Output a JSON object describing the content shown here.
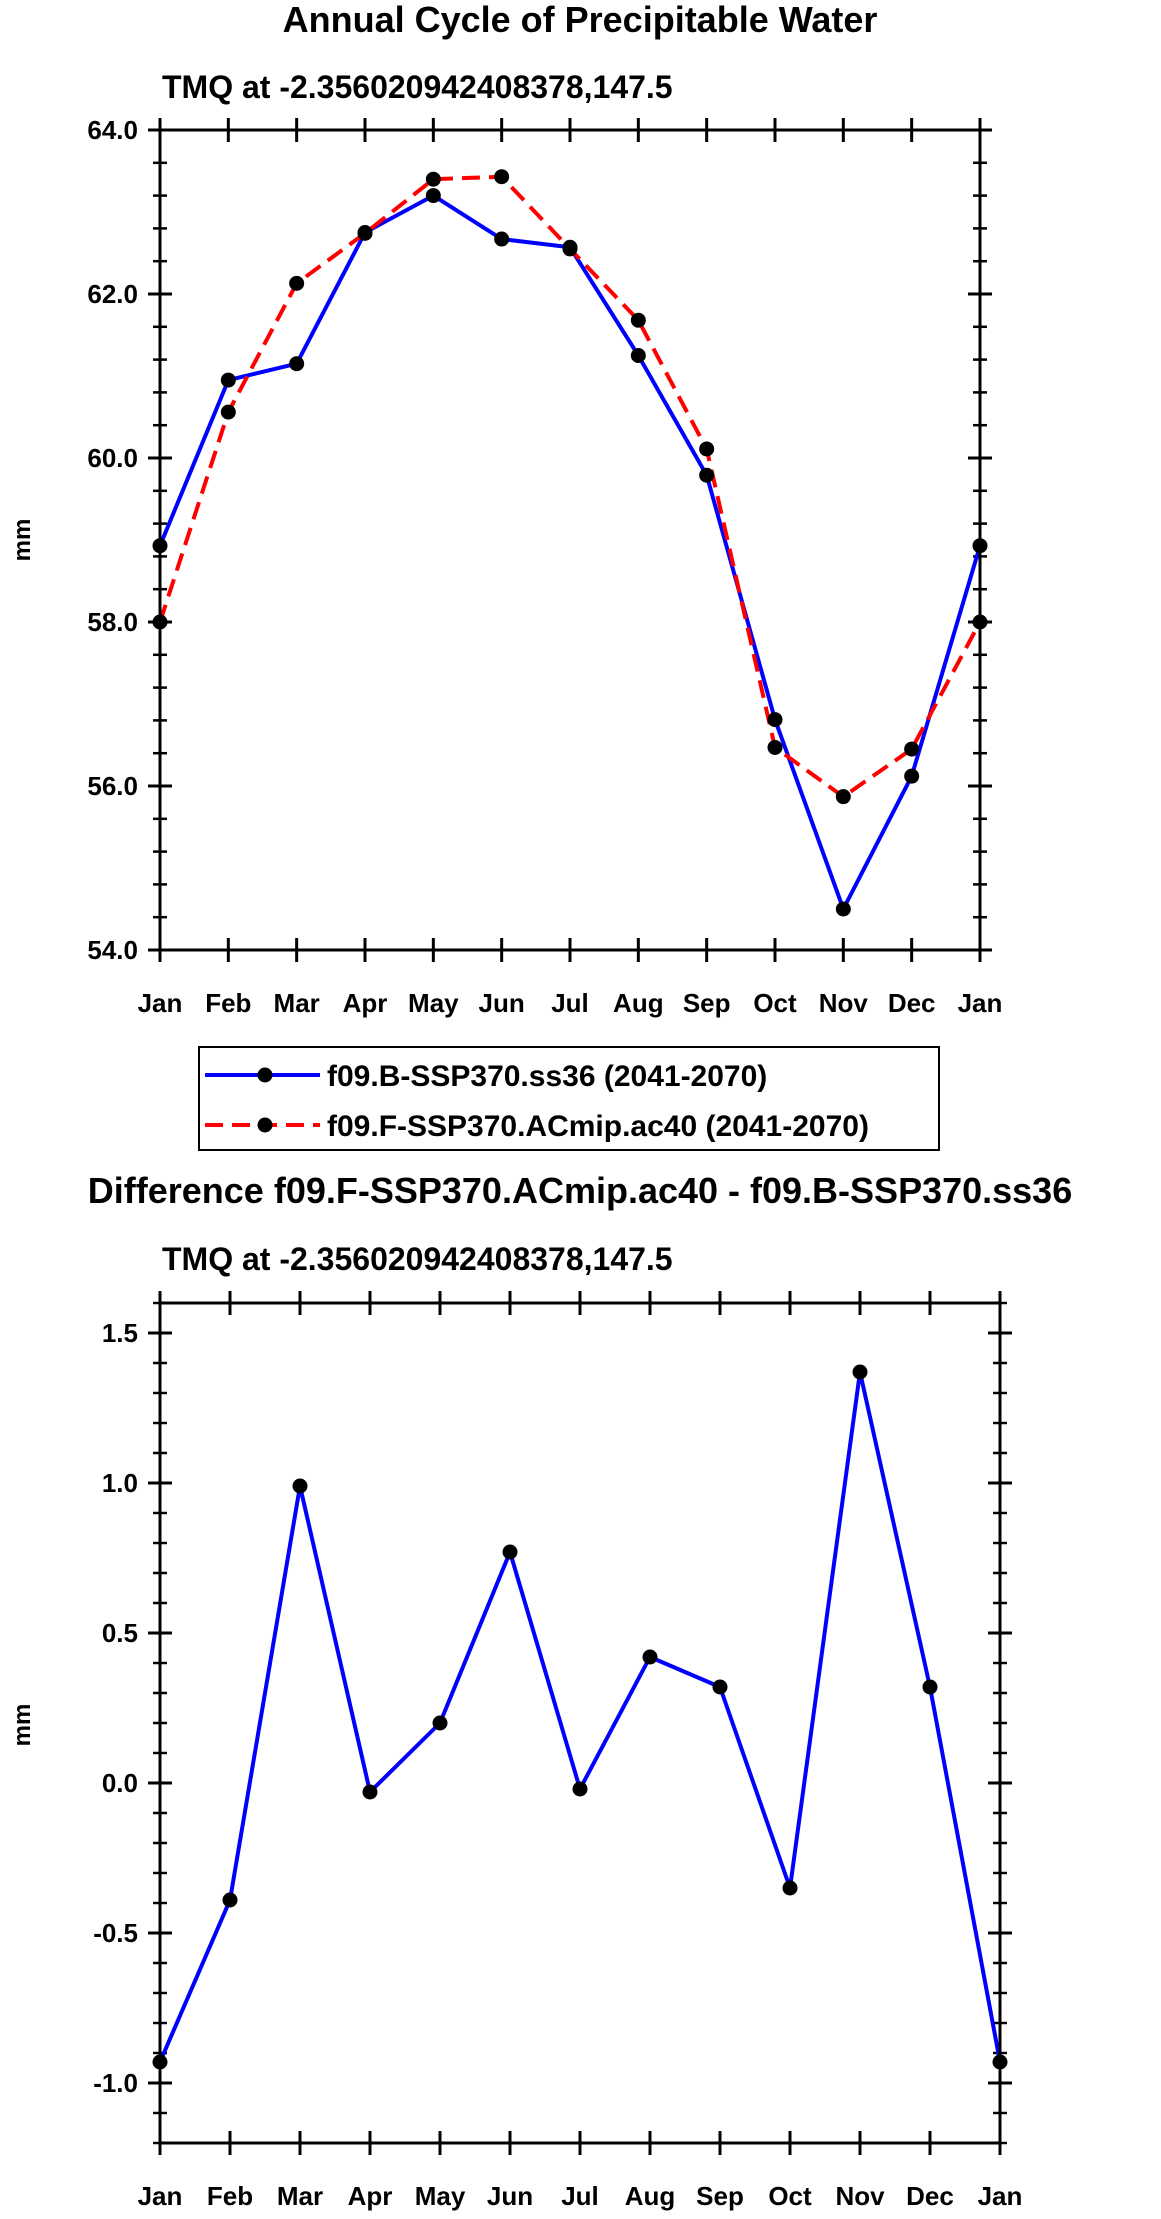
{
  "chart_data": [
    {
      "type": "line",
      "title": "Annual Cycle of Precipitable Water",
      "subtitle": "TMQ at -2.356020942408378,147.5",
      "xlabel": "",
      "ylabel": "mm",
      "categories": [
        "Jan",
        "Feb",
        "Mar",
        "Apr",
        "May",
        "Jun",
        "Jul",
        "Aug",
        "Sep",
        "Oct",
        "Nov",
        "Dec",
        "Jan"
      ],
      "ylim": [
        54.0,
        64.0
      ],
      "yticks": [
        "54.0",
        "56.0",
        "58.0",
        "60.0",
        "62.0",
        "64.0"
      ],
      "grid": false,
      "legend_position": "below",
      "series": [
        {
          "name": "f09.B-SSP370.ss36 (2041-2070)",
          "color": "#0000ff",
          "style": "solid",
          "values": [
            58.93,
            60.95,
            61.15,
            62.75,
            63.2,
            62.67,
            62.57,
            61.25,
            59.79,
            56.81,
            54.5,
            56.12,
            58.93
          ]
        },
        {
          "name": "f09.F-SSP370.ACmip.ac40 (2041-2070)",
          "color": "#ff0000",
          "style": "dashed",
          "values": [
            58.0,
            60.56,
            62.13,
            62.74,
            63.4,
            63.43,
            62.55,
            61.68,
            60.11,
            56.47,
            55.87,
            56.45,
            58.0
          ]
        }
      ]
    },
    {
      "type": "line",
      "title": "Difference f09.F-SSP370.ACmip.ac40 - f09.B-SSP370.ss36",
      "subtitle": "TMQ at -2.356020942408378,147.5",
      "xlabel": "",
      "ylabel": "mm",
      "categories": [
        "Jan",
        "Feb",
        "Mar",
        "Apr",
        "May",
        "Jun",
        "Jul",
        "Aug",
        "Sep",
        "Oct",
        "Nov",
        "Dec",
        "Jan"
      ],
      "ylim": [
        -1.2,
        1.6
      ],
      "yticks": [
        "-1.0",
        "-0.5",
        "0.0",
        "0.5",
        "1.0",
        "1.5"
      ],
      "grid": false,
      "series": [
        {
          "name": "Difference",
          "color": "#0000ff",
          "style": "solid",
          "values": [
            -0.93,
            -0.39,
            0.99,
            -0.03,
            0.2,
            0.77,
            -0.02,
            0.42,
            0.32,
            -0.35,
            1.37,
            0.32,
            -0.93
          ]
        }
      ]
    }
  ]
}
